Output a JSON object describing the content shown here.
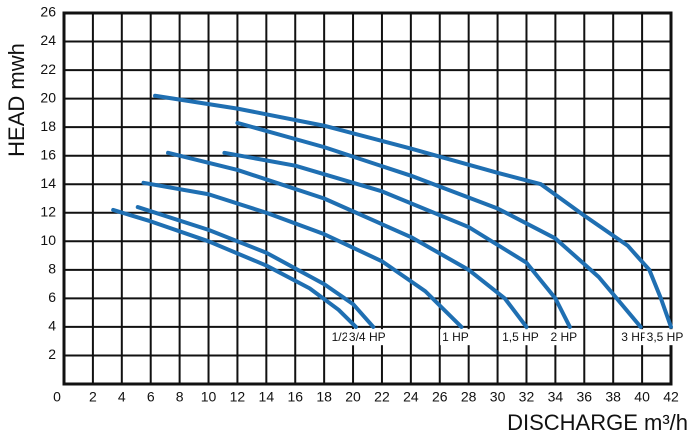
{
  "chart_data": {
    "type": "line",
    "x_label": "DISCHARGE m³/h",
    "y_label": "HEAD mwh",
    "xlim": [
      0,
      42
    ],
    "ylim": [
      0,
      26
    ],
    "xticks": [
      0,
      2,
      4,
      6,
      8,
      10,
      12,
      14,
      16,
      18,
      20,
      22,
      24,
      26,
      28,
      30,
      32,
      34,
      36,
      38,
      40,
      42
    ],
    "yticks": [
      2,
      4,
      6,
      8,
      10,
      12,
      14,
      16,
      18,
      20,
      22,
      24,
      26
    ],
    "grid": true,
    "series": [
      {
        "name": "1/2 HP",
        "color": "#1f6fb2",
        "x": [
          3.4,
          6,
          10,
          14,
          17,
          19,
          20.2
        ],
        "values": [
          12.2,
          11.4,
          10,
          8.3,
          6.7,
          5.2,
          4
        ]
      },
      {
        "name": "3/4 HP",
        "color": "#1f6fb2",
        "x": [
          5.1,
          10,
          14,
          18,
          20,
          21.4
        ],
        "values": [
          12.4,
          10.8,
          9.2,
          7,
          5.6,
          4
        ]
      },
      {
        "name": "1 HP",
        "color": "#1f6fb2",
        "x": [
          5.5,
          10,
          14,
          18,
          22,
          25,
          27.5
        ],
        "values": [
          14.1,
          13.3,
          12,
          10.5,
          8.6,
          6.5,
          4
        ]
      },
      {
        "name": "1,5 HP",
        "color": "#1f6fb2",
        "x": [
          7.2,
          12,
          18,
          24,
          28,
          30.5,
          32
        ],
        "values": [
          16.2,
          15,
          13,
          10.3,
          8,
          6,
          4
        ]
      },
      {
        "name": "2 HP",
        "color": "#1f6fb2",
        "x": [
          11.1,
          16,
          22,
          28,
          32,
          34,
          35
        ],
        "values": [
          16.2,
          15.3,
          13.5,
          11,
          8.5,
          6,
          4
        ]
      },
      {
        "name": "3 HP",
        "color": "#1f6fb2",
        "x": [
          12,
          18,
          24,
          30,
          34,
          37,
          39.9
        ],
        "values": [
          18.3,
          16.6,
          14.6,
          12.3,
          10.2,
          7.5,
          4
        ]
      },
      {
        "name": "3,5 HP",
        "color": "#1f6fb2",
        "x": [
          6.3,
          12,
          18,
          24,
          30,
          33,
          36,
          39,
          40.5,
          41.3,
          42
        ],
        "values": [
          20.2,
          19.3,
          18.1,
          16.5,
          14.8,
          14,
          11.8,
          9.7,
          8,
          6,
          4
        ]
      }
    ]
  }
}
